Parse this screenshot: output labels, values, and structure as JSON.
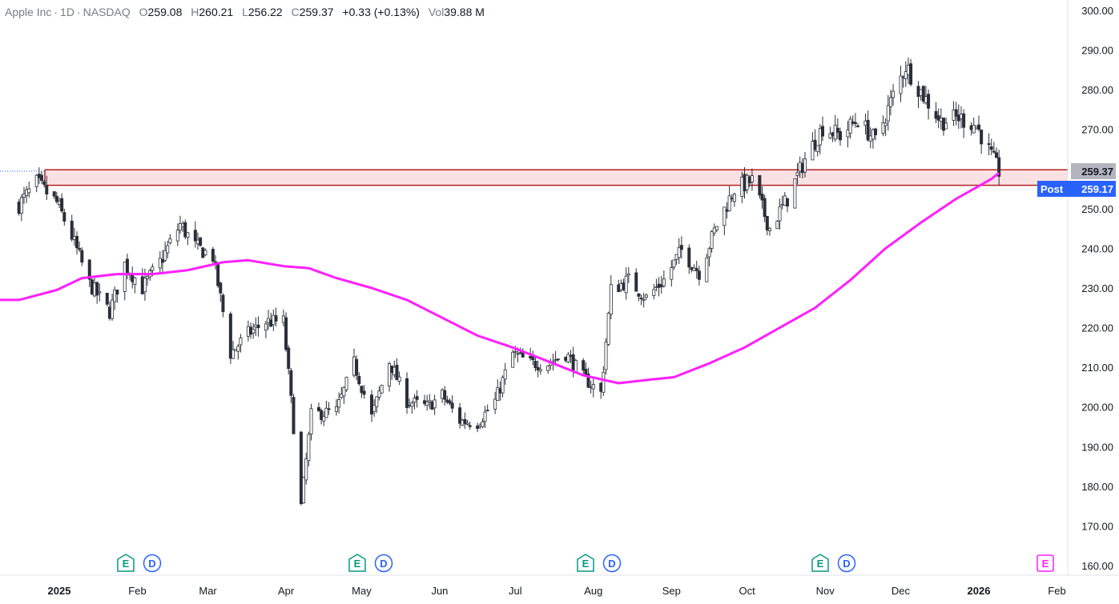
{
  "header": {
    "symbol": "Apple Inc",
    "interval": "1D",
    "exchange": "NASDAQ",
    "o_label": "O",
    "o": "259.08",
    "h_label": "H",
    "h": "260.21",
    "l_label": "L",
    "l": "256.22",
    "c_label": "C",
    "c": "259.37",
    "change": "+0.33 (+0.13%)",
    "vol_label": "Vol",
    "vol": "39.88 M"
  },
  "price_labels": {
    "last": "259.37",
    "post_label": "Post",
    "post": "259.17"
  },
  "events": [
    {
      "type": "E",
      "month": "Jan"
    },
    {
      "type": "D",
      "month": "Feb"
    },
    {
      "type": "E",
      "month": "May"
    },
    {
      "type": "D",
      "month": "May"
    },
    {
      "type": "E",
      "month": "Aug"
    },
    {
      "type": "D",
      "month": "Aug"
    },
    {
      "type": "E",
      "month": "Oct"
    },
    {
      "type": "D",
      "month": "Nov"
    },
    {
      "type": "E",
      "month": "Jan"
    }
  ],
  "colors": {
    "candle": "#2a2e39",
    "ma": "#ff1fff",
    "zone_border": "#b22222",
    "zone_fill": "#f8d7da",
    "post_badge": "#2962ff",
    "last_badge": "#b2b5be",
    "earnings": "#089981",
    "dividends": "#2962ff"
  },
  "chart_data": {
    "type": "candlestick",
    "title": "Apple Inc · 1D · NASDAQ",
    "ylim": [
      160,
      300
    ],
    "yticks": [
      "160.00",
      "170.00",
      "180.00",
      "190.00",
      "200.00",
      "210.00",
      "220.00",
      "230.00",
      "240.00",
      "250.00",
      "260.00",
      "270.00",
      "280.00",
      "290.00",
      "300.00"
    ],
    "xticks": [
      "2025",
      "Feb",
      "Mar",
      "Apr",
      "May",
      "Jun",
      "Jul",
      "Aug",
      "Sep",
      "Oct",
      "Nov",
      "Dec",
      "2026",
      "Feb"
    ],
    "xticks_bold": [
      "2025",
      "2026"
    ],
    "resistance_zone": [
      255.9,
      259.8
    ],
    "close_series": [
      [
        "2024-12-16",
        251.0
      ],
      [
        "2024-12-23",
        256.5
      ],
      [
        "2024-12-31",
        251.5
      ],
      [
        "2025-01-06",
        243.0
      ],
      [
        "2025-01-13",
        231.0
      ],
      [
        "2025-01-21",
        224.0
      ],
      [
        "2025-01-27",
        236.0
      ],
      [
        "2025-02-03",
        230.0
      ],
      [
        "2025-02-10",
        236.5
      ],
      [
        "2025-02-18",
        246.0
      ],
      [
        "2025-02-24",
        240.5
      ],
      [
        "2025-03-03",
        238.0
      ],
      [
        "2025-03-10",
        213.5
      ],
      [
        "2025-03-17",
        218.5
      ],
      [
        "2025-03-24",
        221.5
      ],
      [
        "2025-03-31",
        221.5
      ],
      [
        "2025-04-07",
        175.0
      ],
      [
        "2025-04-11",
        198.0
      ],
      [
        "2025-04-21",
        199.0
      ],
      [
        "2025-04-28",
        211.0
      ],
      [
        "2025-05-05",
        197.5
      ],
      [
        "2025-05-12",
        211.5
      ],
      [
        "2025-05-19",
        201.5
      ],
      [
        "2025-05-27",
        200.0
      ],
      [
        "2025-06-02",
        203.0
      ],
      [
        "2025-06-09",
        196.5
      ],
      [
        "2025-06-16",
        196.0
      ],
      [
        "2025-06-23",
        201.5
      ],
      [
        "2025-06-30",
        213.5
      ],
      [
        "2025-07-07",
        211.0
      ],
      [
        "2025-07-14",
        211.0
      ],
      [
        "2025-07-21",
        213.5
      ],
      [
        "2025-07-28",
        207.5
      ],
      [
        "2025-08-04",
        203.5
      ],
      [
        "2025-08-08",
        229.5
      ],
      [
        "2025-08-15",
        232.0
      ],
      [
        "2025-08-22",
        227.5
      ],
      [
        "2025-08-29",
        232.0
      ],
      [
        "2025-09-05",
        239.5
      ],
      [
        "2025-09-12",
        234.0
      ],
      [
        "2025-09-19",
        246.0
      ],
      [
        "2025-09-26",
        255.0
      ],
      [
        "2025-10-03",
        257.0
      ],
      [
        "2025-10-10",
        245.0
      ],
      [
        "2025-10-17",
        252.5
      ],
      [
        "2025-10-24",
        262.5
      ],
      [
        "2025-10-31",
        270.5
      ],
      [
        "2025-11-07",
        268.5
      ],
      [
        "2025-11-14",
        272.5
      ],
      [
        "2025-11-21",
        267.0
      ],
      [
        "2025-11-28",
        278.5
      ],
      [
        "2025-12-03",
        286.0
      ],
      [
        "2025-12-10",
        278.5
      ],
      [
        "2025-12-17",
        272.0
      ],
      [
        "2025-12-24",
        273.0
      ],
      [
        "2025-12-31",
        271.0
      ],
      [
        "2026-01-07",
        262.0
      ],
      [
        "2026-01-09",
        259.37
      ]
    ],
    "ma_series": [
      [
        "2024-12-16",
        227.0
      ],
      [
        "2024-12-31",
        229.5
      ],
      [
        "2025-01-10",
        232.5
      ],
      [
        "2025-01-24",
        233.5
      ],
      [
        "2025-02-07",
        233.5
      ],
      [
        "2025-02-21",
        234.5
      ],
      [
        "2025-03-07",
        236.5
      ],
      [
        "2025-03-17",
        237.0
      ],
      [
        "2025-03-31",
        235.5
      ],
      [
        "2025-04-10",
        235.0
      ],
      [
        "2025-04-21",
        232.5
      ],
      [
        "2025-05-05",
        230.0
      ],
      [
        "2025-05-19",
        227.0
      ],
      [
        "2025-06-02",
        222.5
      ],
      [
        "2025-06-16",
        218.0
      ],
      [
        "2025-06-30",
        215.0
      ],
      [
        "2025-07-14",
        211.5
      ],
      [
        "2025-07-28",
        208.0
      ],
      [
        "2025-08-11",
        206.0
      ],
      [
        "2025-08-25",
        207.0
      ],
      [
        "2025-09-02",
        207.5
      ],
      [
        "2025-09-16",
        211.0
      ],
      [
        "2025-09-30",
        215.0
      ],
      [
        "2025-10-14",
        220.0
      ],
      [
        "2025-10-28",
        225.0
      ],
      [
        "2025-11-11",
        232.0
      ],
      [
        "2025-11-25",
        240.0
      ],
      [
        "2025-12-09",
        246.5
      ],
      [
        "2025-12-23",
        252.5
      ],
      [
        "2026-01-06",
        257.5
      ],
      [
        "2026-01-09",
        259.0
      ]
    ]
  }
}
